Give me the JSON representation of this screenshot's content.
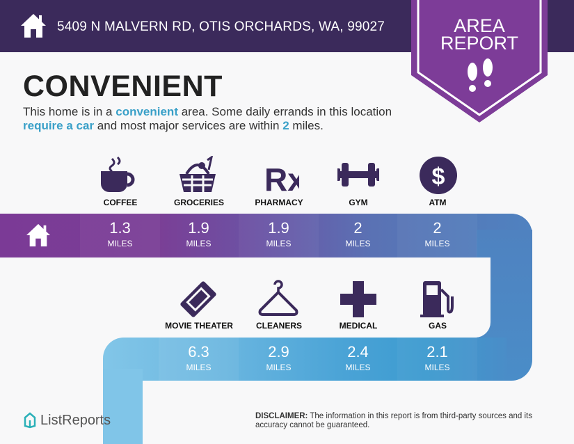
{
  "header": {
    "address": "5409 N MALVERN RD, OTIS ORCHARDS, WA, 99027",
    "icon": "home-icon"
  },
  "badge": {
    "line1": "AREA",
    "line2": "REPORT",
    "icon": "footprints-icon"
  },
  "rating": {
    "title": "CONVENIENT",
    "desc_parts": [
      "This home is in a ",
      "convenient",
      " area. Some daily errands in this location ",
      "require a car",
      " and most major services are within ",
      "2",
      " miles."
    ]
  },
  "amenities_top": [
    {
      "label": "COFFEE",
      "value": "1.3",
      "unit": "MILES",
      "icon": "coffee-icon"
    },
    {
      "label": "GROCERIES",
      "value": "1.9",
      "unit": "MILES",
      "icon": "basket-icon"
    },
    {
      "label": "PHARMACY",
      "value": "1.9",
      "unit": "MILES",
      "icon": "rx-icon"
    },
    {
      "label": "GYM",
      "value": "2",
      "unit": "MILES",
      "icon": "dumbbell-icon"
    },
    {
      "label": "ATM",
      "value": "2",
      "unit": "MILES",
      "icon": "dollar-icon"
    }
  ],
  "amenities_bottom": [
    {
      "label": "MOVIE THEATER",
      "value": "6.3",
      "unit": "MILES",
      "icon": "ticket-icon"
    },
    {
      "label": "CLEANERS",
      "value": "2.9",
      "unit": "MILES",
      "icon": "hanger-icon"
    },
    {
      "label": "MEDICAL",
      "value": "2.4",
      "unit": "MILES",
      "icon": "cross-icon"
    },
    {
      "label": "GAS",
      "value": "2.1",
      "unit": "MILES",
      "icon": "gas-pump-icon"
    }
  ],
  "rx": "Rx",
  "dollar": "$",
  "footer": {
    "logo": "ListReports",
    "disclaimer_label": "DISCLAIMER:",
    "disclaimer": " The information in this report is from third-party sources and its accuracy cannot be guaranteed."
  },
  "colors": {
    "header": "#3b2a5b",
    "badge": "#7d3c98",
    "accent": "#3aa0c8",
    "icon": "#3b2a5b"
  }
}
